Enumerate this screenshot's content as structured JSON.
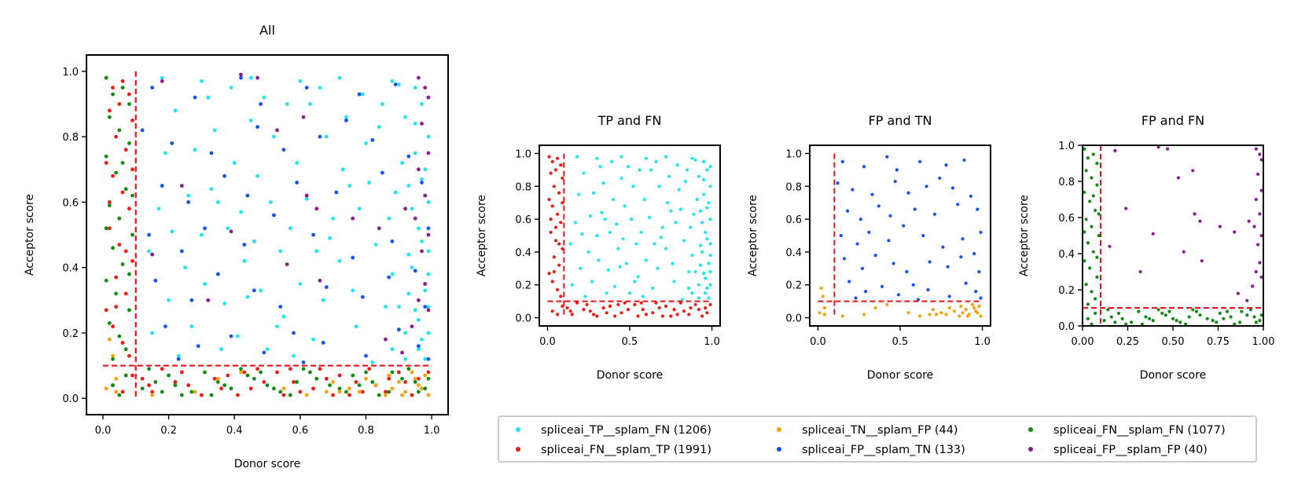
{
  "legend": {
    "location": "bottom",
    "entries": [
      {
        "key": "tp_fn",
        "label": "spliceai_TP__splam_FN (1206)",
        "color": "#1ee6ee"
      },
      {
        "key": "fn_tp",
        "label": "spliceai_FN__splam_TP (1991)",
        "color": "#ee1b14"
      },
      {
        "key": "tn_fp",
        "label": "spliceai_TN__splam_FP (44)",
        "color": "#f6a20e"
      },
      {
        "key": "fp_tn",
        "label": "spliceai_FP__splam_TN (133)",
        "color": "#1452f4"
      },
      {
        "key": "fn_fn",
        "label": "spliceai_FN__splam_FN (1077)",
        "color": "#138a13"
      },
      {
        "key": "fp_fp",
        "label": "spliceai_FP__splam_FP (40)",
        "color": "#8c1a94"
      }
    ]
  },
  "chart_data": [
    {
      "id": "all",
      "type": "scatter",
      "title": "All",
      "xlabel": "Donor score",
      "ylabel": "Acceptor score",
      "xlim": [
        -0.05,
        1.05
      ],
      "ylim": [
        -0.05,
        1.05
      ],
      "xticks": [
        "0.0",
        "0.2",
        "0.4",
        "0.6",
        "0.8",
        "1.0"
      ],
      "yticks": [
        "0.0",
        "0.2",
        "0.4",
        "0.6",
        "0.8",
        "1.0"
      ],
      "threshold": 0.1,
      "grid": false,
      "series": [
        "tp_fn",
        "fn_tp",
        "tn_fp",
        "fp_tn",
        "fn_fn",
        "fp_fp"
      ]
    },
    {
      "id": "tp-fn",
      "type": "scatter",
      "title": "TP and FN",
      "xlabel": "Donor score",
      "ylabel": "Acceptor score",
      "xlim": [
        -0.05,
        1.05
      ],
      "ylim": [
        -0.05,
        1.05
      ],
      "xticks": [
        "0.0",
        "0.5",
        "1.0"
      ],
      "yticks": [
        "0.0",
        "0.2",
        "0.4",
        "0.6",
        "0.8",
        "1.0"
      ],
      "threshold": 0.1,
      "grid": false,
      "series": [
        "tp_fn",
        "fn_tp"
      ]
    },
    {
      "id": "fp-tn",
      "type": "scatter",
      "title": "FP and TN",
      "xlabel": "Donor score",
      "ylabel": "Acceptor score",
      "xlim": [
        -0.05,
        1.05
      ],
      "ylim": [
        -0.05,
        1.05
      ],
      "xticks": [
        "0.0",
        "0.5",
        "1.0"
      ],
      "yticks": [
        "0.0",
        "0.2",
        "0.4",
        "0.6",
        "0.8",
        "1.0"
      ],
      "threshold": 0.1,
      "grid": false,
      "series": [
        "tn_fp",
        "fp_tn"
      ]
    },
    {
      "id": "fp-fn",
      "type": "scatter",
      "title": "FP and FN",
      "xlabel": "Donor score",
      "ylabel": "Acceptor score",
      "xlim": [
        0.0,
        1.0
      ],
      "ylim": [
        0.0,
        1.0
      ],
      "xticks": [
        "0.00",
        "0.25",
        "0.50",
        "0.75",
        "1.00"
      ],
      "yticks": [
        "0.0",
        "0.2",
        "0.4",
        "0.6",
        "0.8",
        "1.0"
      ],
      "threshold": 0.1,
      "grid": false,
      "series": [
        "fn_fn",
        "fp_fp"
      ]
    }
  ],
  "points": {
    "tp_fn": [
      [
        0.18,
        0.98
      ],
      [
        0.3,
        0.97
      ],
      [
        0.45,
        0.98
      ],
      [
        0.6,
        0.97
      ],
      [
        0.72,
        0.98
      ],
      [
        0.88,
        0.97
      ],
      [
        0.95,
        0.95
      ],
      [
        0.97,
        0.9
      ],
      [
        0.92,
        0.86
      ],
      [
        0.99,
        0.8
      ],
      [
        0.95,
        0.75
      ],
      [
        0.98,
        0.7
      ],
      [
        0.93,
        0.65
      ],
      [
        0.99,
        0.6
      ],
      [
        0.96,
        0.52
      ],
      [
        0.99,
        0.45
      ],
      [
        0.94,
        0.4
      ],
      [
        0.98,
        0.33
      ],
      [
        0.95,
        0.27
      ],
      [
        0.99,
        0.2
      ],
      [
        0.96,
        0.15
      ],
      [
        0.92,
        0.12
      ],
      [
        0.85,
        0.9
      ],
      [
        0.8,
        0.78
      ],
      [
        0.75,
        0.65
      ],
      [
        0.7,
        0.55
      ],
      [
        0.65,
        0.45
      ],
      [
        0.6,
        0.35
      ],
      [
        0.55,
        0.25
      ],
      [
        0.5,
        0.15
      ],
      [
        0.45,
        0.85
      ],
      [
        0.4,
        0.72
      ],
      [
        0.35,
        0.6
      ],
      [
        0.3,
        0.5
      ],
      [
        0.25,
        0.4
      ],
      [
        0.2,
        0.3
      ],
      [
        0.15,
        0.2
      ],
      [
        0.22,
        0.88
      ],
      [
        0.28,
        0.76
      ],
      [
        0.33,
        0.64
      ],
      [
        0.38,
        0.52
      ],
      [
        0.43,
        0.42
      ],
      [
        0.48,
        0.33
      ],
      [
        0.53,
        0.22
      ],
      [
        0.58,
        0.13
      ],
      [
        0.63,
        0.9
      ],
      [
        0.68,
        0.8
      ],
      [
        0.73,
        0.7
      ],
      [
        0.78,
        0.58
      ],
      [
        0.83,
        0.47
      ],
      [
        0.88,
        0.38
      ],
      [
        0.9,
        0.28
      ],
      [
        0.86,
        0.18
      ],
      [
        0.82,
        0.11
      ],
      [
        0.17,
        0.58
      ],
      [
        0.19,
        0.75
      ],
      [
        0.26,
        0.62
      ],
      [
        0.32,
        0.92
      ],
      [
        0.37,
        0.29
      ],
      [
        0.42,
        0.57
      ],
      [
        0.47,
        0.68
      ],
      [
        0.52,
        0.8
      ],
      [
        0.57,
        0.52
      ],
      [
        0.62,
        0.61
      ],
      [
        0.67,
        0.3
      ],
      [
        0.72,
        0.42
      ],
      [
        0.77,
        0.22
      ],
      [
        0.81,
        0.66
      ],
      [
        0.87,
        0.55
      ],
      [
        0.91,
        0.72
      ],
      [
        0.94,
        0.58
      ],
      [
        0.97,
        0.48
      ],
      [
        0.99,
        0.38
      ],
      [
        0.93,
        0.32
      ],
      [
        0.96,
        0.24
      ],
      [
        0.98,
        0.12
      ],
      [
        0.9,
        0.96
      ],
      [
        0.84,
        0.83
      ],
      [
        0.79,
        0.93
      ],
      [
        0.74,
        0.86
      ],
      [
        0.66,
        0.95
      ],
      [
        0.56,
        0.9
      ],
      [
        0.51,
        0.6
      ],
      [
        0.46,
        0.48
      ],
      [
        0.41,
        0.19
      ],
      [
        0.36,
        0.15
      ],
      [
        0.31,
        0.35
      ],
      [
        0.27,
        0.22
      ],
      [
        0.23,
        0.13
      ],
      [
        0.14,
        0.45
      ],
      [
        0.21,
        0.51
      ],
      [
        0.34,
        0.82
      ],
      [
        0.39,
        0.95
      ],
      [
        0.44,
        0.31
      ],
      [
        0.49,
        0.92
      ],
      [
        0.54,
        0.45
      ],
      [
        0.59,
        0.72
      ],
      [
        0.64,
        0.18
      ],
      [
        0.69,
        0.49
      ],
      [
        0.76,
        0.33
      ],
      [
        0.89,
        0.63
      ],
      [
        0.97,
        0.67
      ],
      [
        0.99,
        0.92
      ],
      [
        0.95,
        0.84
      ],
      [
        0.93,
        0.44
      ],
      [
        0.99,
        0.28
      ],
      [
        0.97,
        0.18
      ],
      [
        0.92,
        0.2
      ],
      [
        0.88,
        0.15
      ],
      [
        0.86,
        0.28
      ]
    ],
    "fn_tp": [
      [
        0.01,
        0.98
      ],
      [
        0.03,
        0.95
      ],
      [
        0.06,
        0.97
      ],
      [
        0.08,
        0.93
      ],
      [
        0.02,
        0.88
      ],
      [
        0.05,
        0.9
      ],
      [
        0.09,
        0.85
      ],
      [
        0.04,
        0.8
      ],
      [
        0.07,
        0.76
      ],
      [
        0.01,
        0.72
      ],
      [
        0.03,
        0.68
      ],
      [
        0.06,
        0.63
      ],
      [
        0.08,
        0.58
      ],
      [
        0.02,
        0.52
      ],
      [
        0.05,
        0.47
      ],
      [
        0.09,
        0.42
      ],
      [
        0.04,
        0.37
      ],
      [
        0.07,
        0.32
      ],
      [
        0.01,
        0.27
      ],
      [
        0.03,
        0.22
      ],
      [
        0.06,
        0.17
      ],
      [
        0.08,
        0.13
      ],
      [
        0.02,
        0.6
      ],
      [
        0.05,
        0.55
      ],
      [
        0.09,
        0.7
      ],
      [
        0.04,
        0.28
      ],
      [
        0.07,
        0.45
      ],
      [
        0.15,
        0.02
      ],
      [
        0.22,
        0.05
      ],
      [
        0.3,
        0.01
      ],
      [
        0.38,
        0.07
      ],
      [
        0.45,
        0.03
      ],
      [
        0.53,
        0.08
      ],
      [
        0.6,
        0.02
      ],
      [
        0.68,
        0.06
      ],
      [
        0.75,
        0.01
      ],
      [
        0.83,
        0.04
      ],
      [
        0.9,
        0.08
      ],
      [
        0.97,
        0.03
      ],
      [
        0.18,
        0.09
      ],
      [
        0.26,
        0.04
      ],
      [
        0.34,
        0.06
      ],
      [
        0.41,
        0.01
      ],
      [
        0.49,
        0.05
      ],
      [
        0.57,
        0.09
      ],
      [
        0.64,
        0.03
      ],
      [
        0.72,
        0.07
      ],
      [
        0.79,
        0.02
      ],
      [
        0.87,
        0.06
      ],
      [
        0.94,
        0.01
      ],
      [
        0.12,
        0.06
      ],
      [
        0.24,
        0.08
      ],
      [
        0.36,
        0.03
      ],
      [
        0.47,
        0.09
      ],
      [
        0.58,
        0.05
      ],
      [
        0.7,
        0.01
      ],
      [
        0.81,
        0.09
      ],
      [
        0.92,
        0.05
      ],
      [
        0.99,
        0.08
      ],
      [
        0.03,
        0.04
      ],
      [
        0.06,
        0.02
      ],
      [
        0.09,
        0.07
      ],
      [
        0.14,
        0.04
      ],
      [
        0.28,
        0.02
      ],
      [
        0.43,
        0.08
      ],
      [
        0.55,
        0.01
      ],
      [
        0.66,
        0.09
      ],
      [
        0.77,
        0.05
      ],
      [
        0.86,
        0.02
      ],
      [
        0.96,
        0.06
      ]
    ],
    "tn_fp": [
      [
        0.02,
        0.18
      ],
      [
        0.03,
        0.13
      ],
      [
        0.01,
        0.03
      ],
      [
        0.04,
        0.02
      ],
      [
        0.04,
        0.06
      ],
      [
        0.15,
        0.01
      ],
      [
        0.28,
        0.02
      ],
      [
        0.35,
        0.06
      ],
      [
        0.42,
        0.08
      ],
      [
        0.55,
        0.03
      ],
      [
        0.62,
        0.01
      ],
      [
        0.68,
        0.02
      ],
      [
        0.7,
        0.05
      ],
      [
        0.75,
        0.03
      ],
      [
        0.78,
        0.02
      ],
      [
        0.83,
        0.04
      ],
      [
        0.86,
        0.01
      ],
      [
        0.88,
        0.03
      ],
      [
        0.9,
        0.05
      ],
      [
        0.92,
        0.02
      ],
      [
        0.95,
        0.06
      ],
      [
        0.97,
        0.03
      ],
      [
        0.99,
        0.01
      ],
      [
        0.98,
        0.07
      ],
      [
        0.96,
        0.04
      ],
      [
        0.94,
        0.08
      ],
      [
        0.91,
        0.01
      ],
      [
        0.87,
        0.07
      ],
      [
        0.8,
        0.06
      ],
      [
        0.72,
        0.02
      ]
    ],
    "fp_tn": [
      [
        0.15,
        0.95
      ],
      [
        0.28,
        0.92
      ],
      [
        0.42,
        0.98
      ],
      [
        0.48,
        0.9
      ],
      [
        0.62,
        0.95
      ],
      [
        0.78,
        0.93
      ],
      [
        0.89,
        0.96
      ],
      [
        0.12,
        0.82
      ],
      [
        0.21,
        0.78
      ],
      [
        0.33,
        0.75
      ],
      [
        0.47,
        0.83
      ],
      [
        0.55,
        0.76
      ],
      [
        0.66,
        0.8
      ],
      [
        0.74,
        0.85
      ],
      [
        0.82,
        0.79
      ],
      [
        0.93,
        0.74
      ],
      [
        0.18,
        0.65
      ],
      [
        0.26,
        0.6
      ],
      [
        0.37,
        0.68
      ],
      [
        0.44,
        0.62
      ],
      [
        0.59,
        0.66
      ],
      [
        0.71,
        0.63
      ],
      [
        0.85,
        0.69
      ],
      [
        0.97,
        0.66
      ],
      [
        0.14,
        0.5
      ],
      [
        0.24,
        0.45
      ],
      [
        0.31,
        0.52
      ],
      [
        0.43,
        0.47
      ],
      [
        0.52,
        0.56
      ],
      [
        0.64,
        0.5
      ],
      [
        0.76,
        0.43
      ],
      [
        0.88,
        0.48
      ],
      [
        0.99,
        0.52
      ],
      [
        0.16,
        0.36
      ],
      [
        0.27,
        0.3
      ],
      [
        0.35,
        0.38
      ],
      [
        0.46,
        0.33
      ],
      [
        0.54,
        0.28
      ],
      [
        0.68,
        0.34
      ],
      [
        0.79,
        0.31
      ],
      [
        0.87,
        0.37
      ],
      [
        0.95,
        0.39
      ],
      [
        0.98,
        0.28
      ],
      [
        0.19,
        0.22
      ],
      [
        0.29,
        0.16
      ],
      [
        0.39,
        0.19
      ],
      [
        0.49,
        0.14
      ],
      [
        0.58,
        0.2
      ],
      [
        0.67,
        0.17
      ],
      [
        0.8,
        0.13
      ],
      [
        0.9,
        0.21
      ],
      [
        0.96,
        0.16
      ],
      [
        0.99,
        0.12
      ],
      [
        0.23,
        0.12
      ],
      [
        0.61,
        0.11
      ]
    ],
    "fn_fn": [
      [
        0.01,
        0.98
      ],
      [
        0.03,
        0.93
      ],
      [
        0.06,
        0.95
      ],
      [
        0.02,
        0.86
      ],
      [
        0.05,
        0.82
      ],
      [
        0.08,
        0.78
      ],
      [
        0.01,
        0.74
      ],
      [
        0.04,
        0.69
      ],
      [
        0.07,
        0.64
      ],
      [
        0.02,
        0.59
      ],
      [
        0.05,
        0.55
      ],
      [
        0.09,
        0.5
      ],
      [
        0.03,
        0.46
      ],
      [
        0.06,
        0.41
      ],
      [
        0.01,
        0.36
      ],
      [
        0.04,
        0.32
      ],
      [
        0.08,
        0.27
      ],
      [
        0.02,
        0.23
      ],
      [
        0.05,
        0.19
      ],
      [
        0.07,
        0.15
      ],
      [
        0.03,
        0.12
      ],
      [
        0.08,
        0.9
      ],
      [
        0.06,
        0.72
      ],
      [
        0.09,
        0.62
      ],
      [
        0.01,
        0.52
      ],
      [
        0.08,
        0.38
      ],
      [
        0.12,
        0.03
      ],
      [
        0.2,
        0.07
      ],
      [
        0.27,
        0.02
      ],
      [
        0.35,
        0.05
      ],
      [
        0.42,
        0.09
      ],
      [
        0.5,
        0.04
      ],
      [
        0.57,
        0.01
      ],
      [
        0.65,
        0.06
      ],
      [
        0.72,
        0.03
      ],
      [
        0.8,
        0.08
      ],
      [
        0.87,
        0.02
      ],
      [
        0.95,
        0.05
      ],
      [
        0.16,
        0.05
      ],
      [
        0.24,
        0.01
      ],
      [
        0.31,
        0.08
      ],
      [
        0.39,
        0.03
      ],
      [
        0.46,
        0.06
      ],
      [
        0.54,
        0.02
      ],
      [
        0.61,
        0.09
      ],
      [
        0.69,
        0.04
      ],
      [
        0.76,
        0.07
      ],
      [
        0.84,
        0.01
      ],
      [
        0.91,
        0.06
      ],
      [
        0.98,
        0.03
      ],
      [
        0.14,
        0.09
      ],
      [
        0.22,
        0.04
      ],
      [
        0.33,
        0.01
      ],
      [
        0.44,
        0.07
      ],
      [
        0.52,
        0.03
      ],
      [
        0.63,
        0.08
      ],
      [
        0.74,
        0.02
      ],
      [
        0.82,
        0.05
      ],
      [
        0.93,
        0.09
      ],
      [
        0.99,
        0.06
      ],
      [
        0.03,
        0.04
      ],
      [
        0.07,
        0.07
      ],
      [
        0.05,
        0.01
      ],
      [
        0.18,
        0.02
      ],
      [
        0.37,
        0.04
      ],
      [
        0.59,
        0.05
      ],
      [
        0.78,
        0.04
      ],
      [
        0.96,
        0.02
      ],
      [
        0.88,
        0.08
      ],
      [
        0.48,
        0.08
      ]
    ],
    "fp_fp": [
      [
        0.18,
        0.97
      ],
      [
        0.96,
        0.98
      ],
      [
        0.98,
        0.95
      ],
      [
        0.99,
        0.92
      ],
      [
        0.97,
        0.84
      ],
      [
        0.99,
        0.75
      ],
      [
        0.96,
        0.7
      ],
      [
        0.98,
        0.62
      ],
      [
        0.95,
        0.55
      ],
      [
        0.99,
        0.5
      ],
      [
        0.97,
        0.45
      ],
      [
        0.98,
        0.35
      ],
      [
        0.96,
        0.3
      ],
      [
        0.99,
        0.27
      ],
      [
        0.53,
        0.82
      ],
      [
        0.61,
        0.86
      ],
      [
        0.62,
        0.62
      ],
      [
        0.65,
        0.58
      ],
      [
        0.76,
        0.55
      ],
      [
        0.24,
        0.65
      ],
      [
        0.39,
        0.51
      ],
      [
        0.56,
        0.41
      ],
      [
        0.92,
        0.58
      ],
      [
        0.15,
        0.44
      ],
      [
        0.32,
        0.3
      ],
      [
        0.66,
        0.36
      ],
      [
        0.84,
        0.52
      ],
      [
        0.91,
        0.14
      ],
      [
        0.86,
        0.18
      ],
      [
        0.94,
        0.22
      ],
      [
        0.42,
        0.99
      ],
      [
        0.47,
        0.98
      ]
    ]
  }
}
